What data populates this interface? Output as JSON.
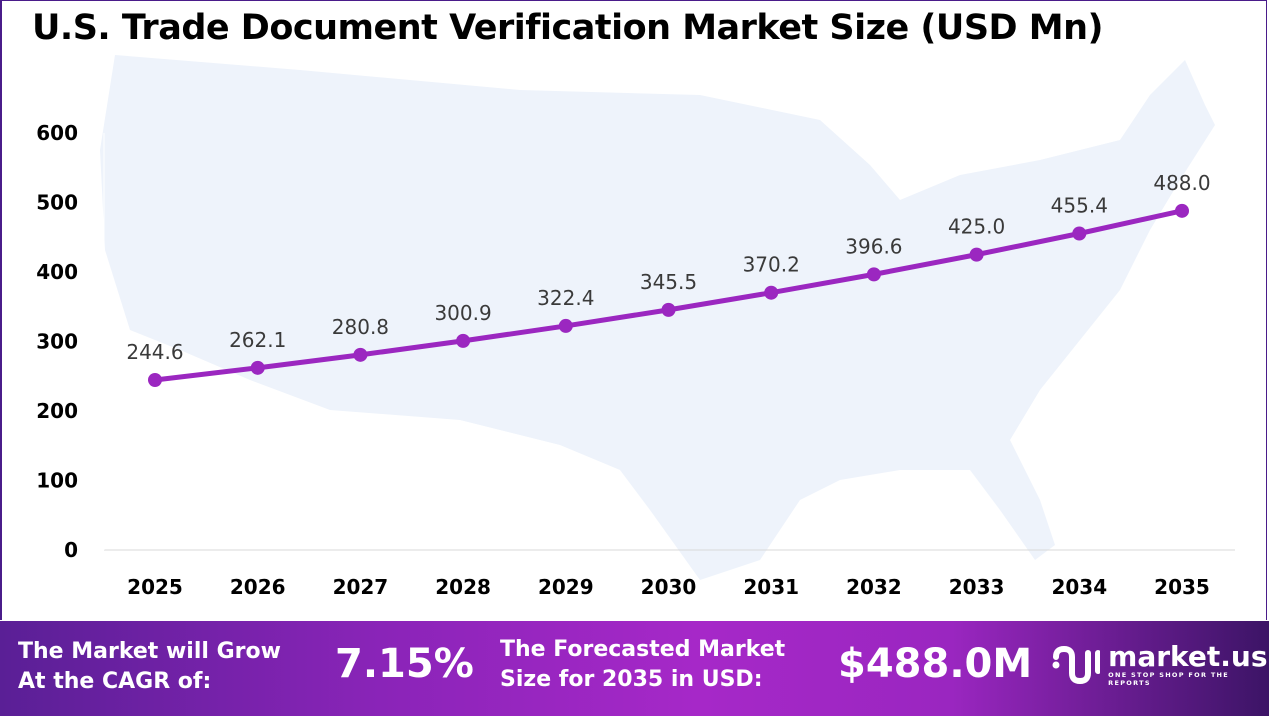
{
  "title": "U.S. Trade Document Verification Market Size (USD Mn)",
  "chart_data": {
    "type": "line",
    "title": "U.S. Trade Document Verification Market Size (USD Mn)",
    "categories": [
      "2025",
      "2026",
      "2027",
      "2028",
      "2029",
      "2030",
      "2031",
      "2032",
      "2033",
      "2034",
      "2035"
    ],
    "values": [
      244.6,
      262.1,
      280.8,
      300.9,
      322.4,
      345.5,
      370.2,
      396.6,
      425.0,
      455.4,
      488.0
    ],
    "data_labels": [
      "244.6",
      "262.1",
      "280.8",
      "300.9",
      "322.4",
      "345.5",
      "370.2",
      "396.6",
      "425.0",
      "455.4",
      "488.0"
    ],
    "ylim": [
      0,
      600
    ],
    "yticks": [
      "0",
      "100",
      "200",
      "300",
      "400",
      "500",
      "600"
    ],
    "grid": false,
    "legend": "none",
    "line_color": "#9b27c0"
  },
  "footer": {
    "cagr_label_line1": "The Market will Grow",
    "cagr_label_line2": "At the CAGR of:",
    "cagr_value": "7.15%",
    "forecast_label_line1": "The Forecasted Market",
    "forecast_label_line2": "Size for 2035 in USD:",
    "forecast_value": "$488.0M",
    "logo_name": "market.us",
    "logo_tagline": "ONE STOP SHOP FOR THE REPORTS"
  }
}
